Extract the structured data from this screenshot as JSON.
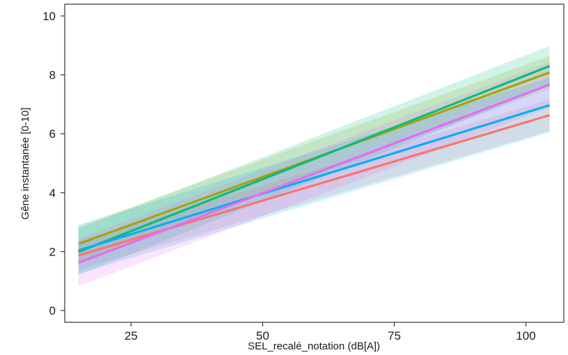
{
  "chart_data": {
    "type": "line",
    "title": "",
    "xlabel": "SEL_recalé_notation (dB[A])",
    "ylabel": "Gêne instantanée [0-10]",
    "xlim": [
      12.4,
      107.2
    ],
    "ylim": [
      -0.4,
      10.4
    ],
    "xticks": [
      25,
      50,
      75,
      100
    ],
    "yticks": [
      0,
      2,
      4,
      6,
      8,
      10
    ],
    "grid": false,
    "legend": "none",
    "band_opacity": 0.18,
    "series": [
      {
        "color": "#F8766D",
        "x": [
          15,
          104.5
        ],
        "y": [
          1.87,
          6.63
        ],
        "lower": [
          1.38,
          6.1
        ],
        "upper": [
          2.36,
          7.16
        ]
      },
      {
        "color": "#A3A500",
        "x": [
          15,
          104.5
        ],
        "y": [
          2.26,
          8.08
        ],
        "lower": [
          1.65,
          7.52
        ],
        "upper": [
          2.87,
          8.64
        ]
      },
      {
        "color": "#00BF7D",
        "x": [
          15,
          104.5
        ],
        "y": [
          1.99,
          8.3
        ],
        "lower": [
          1.2,
          7.62
        ],
        "upper": [
          2.78,
          8.98
        ]
      },
      {
        "color": "#00B0F6",
        "x": [
          15,
          104.5
        ],
        "y": [
          2.04,
          6.97
        ],
        "lower": [
          1.25,
          6.05
        ],
        "upper": [
          2.9,
          7.9
        ]
      },
      {
        "color": "#E76BF3",
        "x": [
          15,
          104.5
        ],
        "y": [
          1.62,
          7.67
        ],
        "lower": [
          0.82,
          6.9
        ],
        "upper": [
          2.42,
          8.44
        ]
      }
    ]
  }
}
